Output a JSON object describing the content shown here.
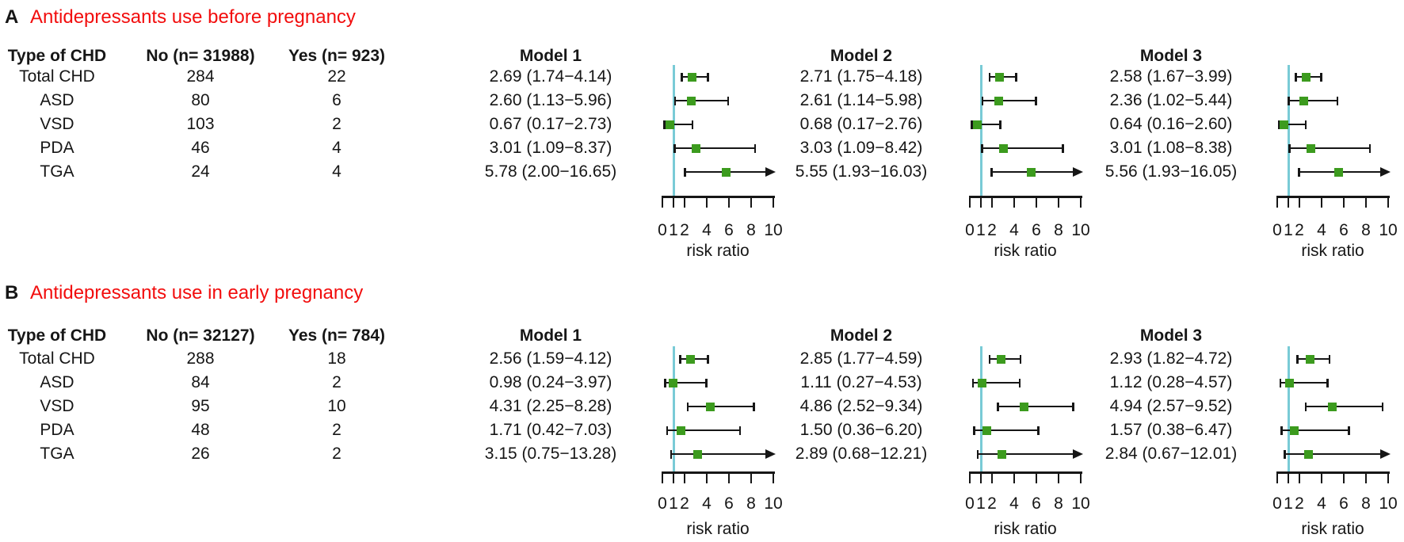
{
  "figure_type": "forest-plot",
  "colors": {
    "marker_green": "#3c9b1e",
    "reference_line_cyan": "#79cbd6",
    "title_red": "#f20d0d",
    "text_black": "#161616"
  },
  "chart_data": [
    {
      "type": "forest",
      "panel_label": "A",
      "title": "Antidepressants use before pregnancy",
      "xlabel": "risk ratio",
      "x_ticks": [
        0,
        1,
        2,
        4,
        6,
        8,
        10
      ],
      "xlim": [
        0,
        10
      ],
      "reference_line_x": 1,
      "legend_position": "none",
      "grid": false,
      "columns": {
        "chd": "Type of CHD",
        "no": "No (n= 31988)",
        "yes": "Yes (n= 923)"
      },
      "model_headers": [
        "Model 1",
        "Model 2",
        "Model 3"
      ],
      "rows": [
        {
          "chd": "Total CHD",
          "no": "284",
          "yes": "22",
          "models": [
            {
              "label": "2.69 (1.74−4.14)",
              "rr": 2.69,
              "lo": 1.74,
              "hi": 4.14
            },
            {
              "label": "2.71 (1.75−4.18)",
              "rr": 2.71,
              "lo": 1.75,
              "hi": 4.18
            },
            {
              "label": "2.58 (1.67−3.99)",
              "rr": 2.58,
              "lo": 1.67,
              "hi": 3.99
            }
          ]
        },
        {
          "chd": "ASD",
          "no": "80",
          "yes": "6",
          "models": [
            {
              "label": "2.60 (1.13−5.96)",
              "rr": 2.6,
              "lo": 1.13,
              "hi": 5.96
            },
            {
              "label": "2.61 (1.14−5.98)",
              "rr": 2.61,
              "lo": 1.14,
              "hi": 5.98
            },
            {
              "label": "2.36 (1.02−5.44)",
              "rr": 2.36,
              "lo": 1.02,
              "hi": 5.44
            }
          ]
        },
        {
          "chd": "VSD",
          "no": "103",
          "yes": "2",
          "models": [
            {
              "label": "0.67 (0.17−2.73)",
              "rr": 0.67,
              "lo": 0.17,
              "hi": 2.73
            },
            {
              "label": "0.68 (0.17−2.76)",
              "rr": 0.68,
              "lo": 0.17,
              "hi": 2.76
            },
            {
              "label": "0.64 (0.16−2.60)",
              "rr": 0.64,
              "lo": 0.16,
              "hi": 2.6
            }
          ]
        },
        {
          "chd": "PDA",
          "no": "46",
          "yes": "4",
          "models": [
            {
              "label": "3.01 (1.09−8.37)",
              "rr": 3.01,
              "lo": 1.09,
              "hi": 8.37
            },
            {
              "label": "3.03 (1.09−8.42)",
              "rr": 3.03,
              "lo": 1.09,
              "hi": 8.42
            },
            {
              "label": "3.01 (1.08−8.38)",
              "rr": 3.01,
              "lo": 1.08,
              "hi": 8.38
            }
          ]
        },
        {
          "chd": "TGA",
          "no": "24",
          "yes": "4",
          "models": [
            {
              "label": "5.78 (2.00−16.65)",
              "rr": 5.78,
              "lo": 2.0,
              "hi": 16.65
            },
            {
              "label": "5.55 (1.93−16.03)",
              "rr": 5.55,
              "lo": 1.93,
              "hi": 16.03
            },
            {
              "label": "5.56 (1.93−16.05)",
              "rr": 5.56,
              "lo": 1.93,
              "hi": 16.05
            }
          ]
        }
      ]
    },
    {
      "type": "forest",
      "panel_label": "B",
      "title": "Antidepressants use in early pregnancy",
      "xlabel": "risk ratio",
      "x_ticks": [
        0,
        1,
        2,
        4,
        6,
        8,
        10
      ],
      "xlim": [
        0,
        10
      ],
      "reference_line_x": 1,
      "legend_position": "none",
      "grid": false,
      "columns": {
        "chd": "Type of CHD",
        "no": "No (n= 32127)",
        "yes": "Yes (n= 784)"
      },
      "model_headers": [
        "Model 1",
        "Model 2",
        "Model 3"
      ],
      "rows": [
        {
          "chd": "Total CHD",
          "no": "288",
          "yes": "18",
          "models": [
            {
              "label": "2.56 (1.59−4.12)",
              "rr": 2.56,
              "lo": 1.59,
              "hi": 4.12
            },
            {
              "label": "2.85 (1.77−4.59)",
              "rr": 2.85,
              "lo": 1.77,
              "hi": 4.59
            },
            {
              "label": "2.93 (1.82−4.72)",
              "rr": 2.93,
              "lo": 1.82,
              "hi": 4.72
            }
          ]
        },
        {
          "chd": "ASD",
          "no": "84",
          "yes": "2",
          "models": [
            {
              "label": "0.98 (0.24−3.97)",
              "rr": 0.98,
              "lo": 0.24,
              "hi": 3.97
            },
            {
              "label": "1.11 (0.27−4.53)",
              "rr": 1.11,
              "lo": 0.27,
              "hi": 4.53
            },
            {
              "label": "1.12 (0.28−4.57)",
              "rr": 1.12,
              "lo": 0.28,
              "hi": 4.57
            }
          ]
        },
        {
          "chd": "VSD",
          "no": "95",
          "yes": "10",
          "models": [
            {
              "label": "4.31 (2.25−8.28)",
              "rr": 4.31,
              "lo": 2.25,
              "hi": 8.28
            },
            {
              "label": "4.86 (2.52−9.34)",
              "rr": 4.86,
              "lo": 2.52,
              "hi": 9.34
            },
            {
              "label": "4.94 (2.57−9.52)",
              "rr": 4.94,
              "lo": 2.57,
              "hi": 9.52
            }
          ]
        },
        {
          "chd": "PDA",
          "no": "48",
          "yes": "2",
          "models": [
            {
              "label": "1.71 (0.42−7.03)",
              "rr": 1.71,
              "lo": 0.42,
              "hi": 7.03
            },
            {
              "label": "1.50 (0.36−6.20)",
              "rr": 1.5,
              "lo": 0.36,
              "hi": 6.2
            },
            {
              "label": "1.57 (0.38−6.47)",
              "rr": 1.57,
              "lo": 0.38,
              "hi": 6.47
            }
          ]
        },
        {
          "chd": "TGA",
          "no": "26",
          "yes": "2",
          "models": [
            {
              "label": "3.15 (0.75−13.28)",
              "rr": 3.15,
              "lo": 0.75,
              "hi": 13.28
            },
            {
              "label": "2.89 (0.68−12.21)",
              "rr": 2.89,
              "lo": 0.68,
              "hi": 12.21
            },
            {
              "label": "2.84 (0.67−12.01)",
              "rr": 2.84,
              "lo": 0.67,
              "hi": 12.01
            }
          ]
        }
      ]
    }
  ]
}
